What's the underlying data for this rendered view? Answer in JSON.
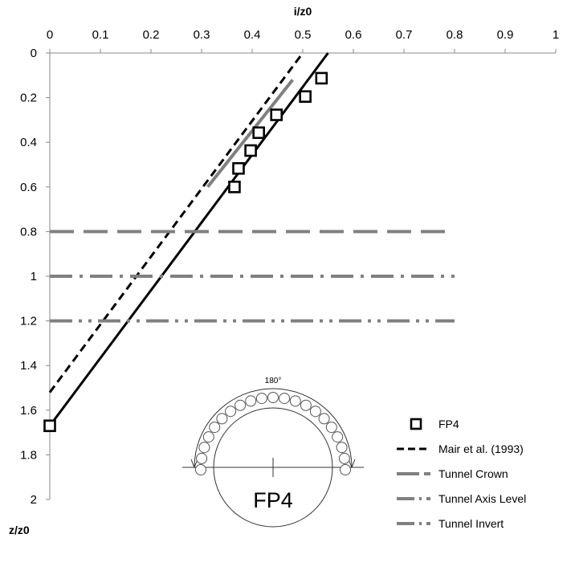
{
  "chart_data": {
    "type": "scatter",
    "xlabel": "i/z0",
    "ylabel": "z/z0",
    "xlim": [
      0,
      1
    ],
    "ylim": [
      0,
      2
    ],
    "y_inverted": true,
    "x_axis_position": "top",
    "x_ticks": [
      "0",
      "0.1",
      "0.2",
      "0.3",
      "0.4",
      "0.5",
      "0.6",
      "0.7",
      "0.8",
      "0.9",
      "1"
    ],
    "y_ticks": [
      "0",
      "0.2",
      "0.4",
      "0.6",
      "0.8",
      "1",
      "1.2",
      "1.4",
      "1.6",
      "1.8",
      "2"
    ],
    "grid": false,
    "legend_position": "bottom-right",
    "series": [
      {
        "name": "FP4",
        "kind": "markers",
        "marker": "square",
        "color": "#000000",
        "points": [
          [
            0.537,
            0.113
          ],
          [
            0.505,
            0.195
          ],
          [
            0.448,
            0.277
          ],
          [
            0.413,
            0.357
          ],
          [
            0.397,
            0.437
          ],
          [
            0.373,
            0.517
          ],
          [
            0.365,
            0.6
          ],
          [
            0.0,
            1.67
          ]
        ]
      },
      {
        "name": "Mair et al. (1993)",
        "kind": "line",
        "style": "dashed",
        "color": "#000000",
        "points": [
          [
            0.0,
            1.52
          ],
          [
            0.5,
            0.0
          ]
        ]
      },
      {
        "name": "",
        "kind": "line",
        "style": "solid",
        "color": "#000000",
        "points": [
          [
            0.0,
            1.67
          ],
          [
            0.55,
            0.0
          ]
        ]
      },
      {
        "name": "",
        "kind": "line",
        "style": "solid",
        "color": "#808080",
        "points": [
          [
            0.312,
            0.6
          ],
          [
            0.48,
            0.12
          ]
        ]
      },
      {
        "name": "Tunnel Crown",
        "kind": "line",
        "style": "long-dash",
        "color": "#808080",
        "points": [
          [
            0.0,
            0.8
          ],
          [
            0.8,
            0.8
          ]
        ]
      },
      {
        "name": "Tunnel Axis Level",
        "kind": "line",
        "style": "dash-dot",
        "color": "#808080",
        "points": [
          [
            0.0,
            1.0
          ],
          [
            0.8,
            1.0
          ]
        ]
      },
      {
        "name": "Tunnel Invert",
        "kind": "line",
        "style": "dash-dot-dot",
        "color": "#808080",
        "points": [
          [
            0.0,
            1.2
          ],
          [
            0.8,
            1.2
          ]
        ]
      }
    ],
    "inset": {
      "angle_label": "180°",
      "label": "FP4",
      "circle_count": 21
    }
  }
}
